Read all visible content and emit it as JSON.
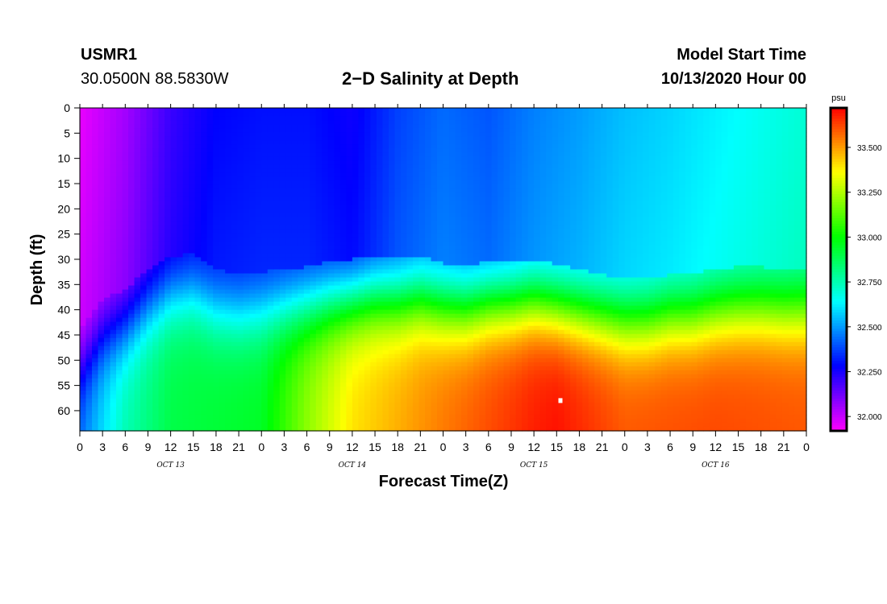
{
  "header": {
    "station_id": "USMR1",
    "coordinates": "30.0500N 88.5830W",
    "title": "2−D Salinity at Depth",
    "model_start_label": "Model Start Time",
    "model_start_value": "10/13/2020 Hour 00"
  },
  "chart_data": {
    "type": "heatmap",
    "title": "2−D Salinity at Depth",
    "xlabel": "Forecast Time(Z)",
    "ylabel": "Depth (ft)",
    "x_hours_range": [
      0,
      96
    ],
    "ylim": [
      0,
      64
    ],
    "y_ticks": [
      0,
      5,
      10,
      15,
      20,
      25,
      30,
      35,
      40,
      45,
      50,
      55,
      60
    ],
    "x_tick_labels": [
      "0",
      "3",
      "6",
      "9",
      "12",
      "15",
      "18",
      "21",
      "0",
      "3",
      "6",
      "9",
      "12",
      "15",
      "18",
      "21",
      "0",
      "3",
      "6",
      "9",
      "12",
      "15",
      "18",
      "21",
      "0",
      "3",
      "6",
      "9",
      "12",
      "15",
      "18",
      "21",
      "0"
    ],
    "day_labels": [
      {
        "label": "OCT 13",
        "hour": 12
      },
      {
        "label": "OCT 14",
        "hour": 36
      },
      {
        "label": "OCT 15",
        "hour": 60
      },
      {
        "label": "OCT 16",
        "hour": 84
      }
    ],
    "colorbar": {
      "unit": "psu",
      "min": 31.92,
      "max": 33.72,
      "tick_labels": [
        "32.000",
        "32.250",
        "32.500",
        "32.750",
        "33.000",
        "33.250",
        "33.500"
      ],
      "tick_values": [
        32.0,
        32.25,
        32.5,
        32.75,
        33.0,
        33.25,
        33.5
      ]
    },
    "surface_salinity_by_hour": [
      [
        0,
        31.95
      ],
      [
        6,
        32.05
      ],
      [
        12,
        32.2
      ],
      [
        18,
        32.28
      ],
      [
        24,
        32.3
      ],
      [
        30,
        32.3
      ],
      [
        36,
        32.26
      ],
      [
        42,
        32.37
      ],
      [
        48,
        32.43
      ],
      [
        54,
        32.4
      ],
      [
        60,
        32.46
      ],
      [
        66,
        32.5
      ],
      [
        72,
        32.55
      ],
      [
        78,
        32.58
      ],
      [
        84,
        32.62
      ],
      [
        90,
        32.66
      ],
      [
        96,
        32.7
      ]
    ],
    "halocline_depth_ft_by_hour": [
      [
        0,
        52
      ],
      [
        3,
        46
      ],
      [
        6,
        44
      ],
      [
        9,
        40
      ],
      [
        12,
        37.5
      ],
      [
        15,
        37
      ],
      [
        18,
        40
      ],
      [
        21,
        41
      ],
      [
        24,
        40.5
      ],
      [
        27,
        40
      ],
      [
        30,
        39.5
      ],
      [
        33,
        38.5
      ],
      [
        36,
        38
      ],
      [
        39,
        37.5
      ],
      [
        42,
        38
      ],
      [
        45,
        37.5
      ],
      [
        48,
        39
      ],
      [
        51,
        39.5
      ],
      [
        54,
        38.5
      ],
      [
        57,
        38.5
      ],
      [
        60,
        38
      ],
      [
        63,
        39
      ],
      [
        66,
        40
      ],
      [
        69,
        41
      ],
      [
        72,
        42
      ],
      [
        75,
        42
      ],
      [
        78,
        41
      ],
      [
        81,
        41
      ],
      [
        84,
        40
      ],
      [
        87,
        39.5
      ],
      [
        90,
        39.5
      ],
      [
        93,
        40
      ],
      [
        96,
        40
      ]
    ],
    "bottom_salinity_by_hour": [
      [
        0,
        32.45
      ],
      [
        6,
        32.75
      ],
      [
        12,
        32.9
      ],
      [
        24,
        32.95
      ],
      [
        30,
        33.2
      ],
      [
        36,
        33.4
      ],
      [
        48,
        33.55
      ],
      [
        60,
        33.68
      ],
      [
        63,
        33.7
      ],
      [
        72,
        33.6
      ],
      [
        84,
        33.62
      ],
      [
        96,
        33.6
      ]
    ],
    "marker": {
      "hour": 63.5,
      "depth_ft": 58
    }
  }
}
